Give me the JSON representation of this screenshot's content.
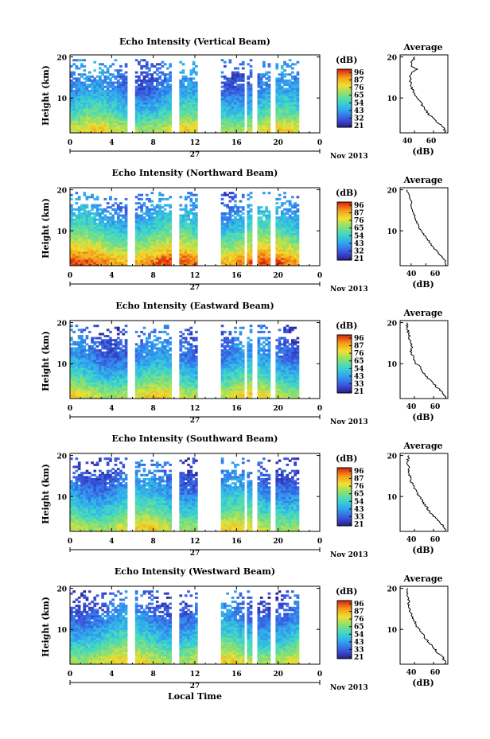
{
  "figure": {
    "panels": [
      {
        "title": "Echo Intensity (Vertical Beam)",
        "cbar_ticks": [
          "96",
          "87",
          "76",
          "65",
          "54",
          "43",
          "32",
          "21"
        ],
        "avg_xticks": [
          "40",
          "60"
        ]
      },
      {
        "title": "Echo Intensity (Northward Beam)",
        "cbar_ticks": [
          "96",
          "87",
          "76",
          "65",
          "54",
          "43",
          "32",
          "21"
        ],
        "avg_xticks": [
          "40",
          "60"
        ]
      },
      {
        "title": "Echo Intensity (Eastward Beam)",
        "cbar_ticks": [
          "96",
          "87",
          "76",
          "65",
          "54",
          "43",
          "33",
          "21"
        ],
        "avg_xticks": [
          "40",
          "60"
        ]
      },
      {
        "title": "Echo Intensity (Southward Beam)",
        "cbar_ticks": [
          "96",
          "87",
          "76",
          "65",
          "54",
          "43",
          "33",
          "21"
        ],
        "avg_xticks": [
          "40",
          "60"
        ]
      },
      {
        "title": "Echo Intensity (Westward Beam)",
        "cbar_ticks": [
          "96",
          "87",
          "76",
          "65",
          "54",
          "43",
          "33",
          "21"
        ],
        "avg_xticks": [
          "40",
          "60"
        ]
      }
    ],
    "ylabel": "Height (km)",
    "height_ticks": [
      "20",
      "10"
    ],
    "time_ticks": [
      "0",
      "4",
      "8",
      "12",
      "16",
      "20",
      "0"
    ],
    "day_label": "27",
    "date_label": "Nov 2013",
    "cbar_label": "(dB)",
    "avg_title": "Average",
    "avg_xlabel": "(dB)",
    "xlabel": "Local Time"
  },
  "chart_data": [
    {
      "type": "heatmap",
      "title": "Echo Intensity (Vertical Beam)",
      "xlabel": "",
      "ylabel": "Height (km)",
      "xlim": [
        0,
        24
      ],
      "ylim": [
        1.5,
        20.5
      ],
      "data_gaps_hours": [
        [
          5.6,
          6.3
        ],
        [
          9.8,
          10.4
        ],
        [
          12.2,
          14.6
        ],
        [
          16.7,
          17.0
        ],
        [
          17.6,
          18.0
        ],
        [
          19.2,
          19.7
        ],
        [
          22.0,
          24.0
        ]
      ],
      "colorbar": {
        "label": "(dB)",
        "range": [
          21,
          96
        ],
        "ticks": [
          96,
          87,
          76,
          65,
          54,
          43,
          32,
          21
        ]
      },
      "profile": {
        "title": "Average",
        "xlabel": "(dB)",
        "xlim": [
          25,
          75
        ],
        "ylim": [
          1.5,
          20.5
        ],
        "height_km": [
          2,
          3,
          4,
          5,
          6,
          7,
          8,
          9,
          10,
          11,
          12,
          13,
          14,
          15,
          16,
          17,
          18,
          19,
          20
        ],
        "db": [
          72,
          70,
          65,
          60,
          55,
          52,
          49,
          46,
          43,
          40,
          38,
          37,
          36,
          35,
          37,
          42,
          36,
          38,
          40
        ]
      }
    },
    {
      "type": "heatmap",
      "title": "Echo Intensity (Northward Beam)",
      "xlabel": "",
      "ylabel": "Height (km)",
      "xlim": [
        0,
        24
      ],
      "ylim": [
        1.5,
        20.5
      ],
      "data_gaps_hours": [
        [
          5.6,
          6.3
        ],
        [
          9.8,
          10.4
        ],
        [
          12.2,
          14.6
        ],
        [
          16.7,
          17.0
        ],
        [
          17.6,
          18.0
        ],
        [
          19.2,
          19.7
        ],
        [
          22.0,
          24.0
        ]
      ],
      "colorbar": {
        "label": "(dB)",
        "range": [
          21,
          96
        ],
        "ticks": [
          96,
          87,
          76,
          65,
          54,
          43,
          32,
          21
        ]
      },
      "profile": {
        "title": "Average",
        "xlabel": "(dB)",
        "xlim": [
          25,
          90
        ],
        "ylim": [
          1.5,
          20.5
        ],
        "height_km": [
          2,
          3,
          4,
          5,
          6,
          7,
          8,
          9,
          10,
          11,
          12,
          13,
          14,
          15,
          16,
          17,
          18,
          19,
          20
        ],
        "db": [
          88,
          85,
          80,
          75,
          70,
          66,
          62,
          58,
          54,
          50,
          48,
          46,
          44,
          42,
          41,
          40,
          38,
          36,
          35
        ]
      }
    },
    {
      "type": "heatmap",
      "title": "Echo Intensity (Eastward Beam)",
      "xlabel": "",
      "ylabel": "Height (km)",
      "xlim": [
        0,
        24
      ],
      "ylim": [
        1.5,
        20.5
      ],
      "data_gaps_hours": [
        [
          5.6,
          6.3
        ],
        [
          9.8,
          10.4
        ],
        [
          12.2,
          14.6
        ],
        [
          16.7,
          17.0
        ],
        [
          17.6,
          18.0
        ],
        [
          19.2,
          19.7
        ],
        [
          22.0,
          24.0
        ]
      ],
      "colorbar": {
        "label": "(dB)",
        "range": [
          21,
          96
        ],
        "ticks": [
          96,
          87,
          76,
          65,
          54,
          43,
          33,
          21
        ]
      },
      "profile": {
        "title": "Average",
        "xlabel": "(dB)",
        "xlim": [
          25,
          75
        ],
        "ylim": [
          1.5,
          20.5
        ],
        "height_km": [
          2,
          3,
          4,
          5,
          6,
          7,
          8,
          9,
          10,
          11,
          12,
          13,
          14,
          15,
          16,
          17,
          18,
          19,
          20
        ],
        "db": [
          72,
          70,
          65,
          60,
          56,
          52,
          49,
          46,
          42,
          40,
          38,
          36,
          38,
          36,
          35,
          34,
          33,
          32,
          32
        ]
      }
    },
    {
      "type": "heatmap",
      "title": "Echo Intensity (Southward Beam)",
      "xlabel": "",
      "ylabel": "Height (km)",
      "xlim": [
        0,
        24
      ],
      "ylim": [
        1.5,
        20.5
      ],
      "data_gaps_hours": [
        [
          5.6,
          6.3
        ],
        [
          9.8,
          10.4
        ],
        [
          12.2,
          14.6
        ],
        [
          16.7,
          17.0
        ],
        [
          17.6,
          18.0
        ],
        [
          19.2,
          19.7
        ],
        [
          22.0,
          24.0
        ]
      ],
      "colorbar": {
        "label": "(dB)",
        "range": [
          21,
          96
        ],
        "ticks": [
          96,
          87,
          76,
          65,
          54,
          43,
          33,
          21
        ]
      },
      "profile": {
        "title": "Average",
        "xlabel": "(dB)",
        "xlim": [
          25,
          75
        ],
        "ylim": [
          1.5,
          20.5
        ],
        "height_km": [
          2,
          3,
          4,
          5,
          6,
          7,
          8,
          9,
          10,
          11,
          12,
          13,
          14,
          15,
          16,
          17,
          18,
          19,
          20
        ],
        "db": [
          72,
          70,
          65,
          61,
          57,
          54,
          51,
          48,
          45,
          42,
          40,
          38,
          36,
          35,
          34,
          34,
          33,
          33,
          34
        ]
      }
    },
    {
      "type": "heatmap",
      "title": "Echo Intensity (Westward Beam)",
      "xlabel": "Local Time",
      "ylabel": "Height (km)",
      "xlim": [
        0,
        24
      ],
      "ylim": [
        1.5,
        20.5
      ],
      "data_gaps_hours": [
        [
          5.6,
          6.3
        ],
        [
          9.8,
          10.4
        ],
        [
          12.2,
          14.6
        ],
        [
          16.7,
          17.0
        ],
        [
          17.6,
          18.0
        ],
        [
          19.2,
          19.7
        ],
        [
          22.0,
          24.0
        ]
      ],
      "colorbar": {
        "label": "(dB)",
        "range": [
          21,
          96
        ],
        "ticks": [
          96,
          87,
          76,
          65,
          54,
          43,
          33,
          21
        ]
      },
      "profile": {
        "title": "Average",
        "xlabel": "(dB)",
        "xlim": [
          25,
          75
        ],
        "ylim": [
          1.5,
          20.5
        ],
        "height_km": [
          2,
          3,
          4,
          5,
          6,
          7,
          8,
          9,
          10,
          11,
          12,
          13,
          14,
          15,
          16,
          17,
          18,
          19,
          20
        ],
        "db": [
          72,
          70,
          66,
          62,
          58,
          54,
          51,
          48,
          45,
          42,
          40,
          38,
          36,
          35,
          34,
          34,
          33,
          32,
          32
        ]
      }
    }
  ]
}
